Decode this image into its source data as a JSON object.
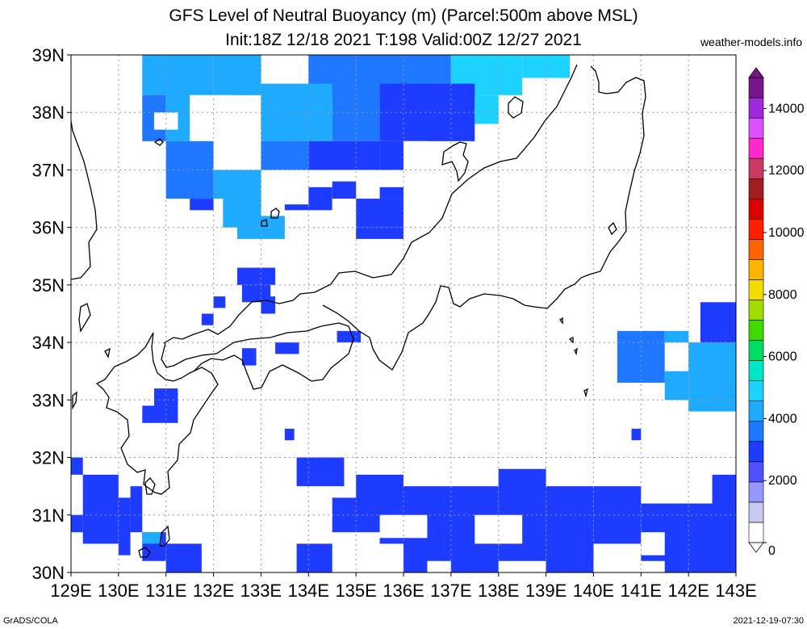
{
  "title": {
    "line1": "GFS Level of Neutral Buoyancy (m) (Parcel:500m above MSL)",
    "line2": "Init:18Z 12/18 2021 T:198 Valid:00Z 12/27 2021"
  },
  "site": "weather-models.info",
  "footer": {
    "left": "GrADS/COLA",
    "right": "2021-12-19-07:30"
  },
  "map": {
    "lon_range": [
      129,
      143
    ],
    "lat_range": [
      30,
      39
    ],
    "lon_labels": [
      "129E",
      "130E",
      "131E",
      "132E",
      "133E",
      "134E",
      "135E",
      "136E",
      "137E",
      "138E",
      "139E",
      "140E",
      "141E",
      "142E",
      "143E"
    ],
    "lat_labels": [
      "30N",
      "31N",
      "32N",
      "33N",
      "34N",
      "35N",
      "36N",
      "37N",
      "38N",
      "39N"
    ],
    "grid": "dotted",
    "coastline_color": "#000000"
  },
  "colorbar": {
    "label_values": [
      "0",
      "2000",
      "4000",
      "6000",
      "8000",
      "10000",
      "12000",
      "14000"
    ],
    "colors": [
      "#ffffff",
      "#c8c8f0",
      "#9696ff",
      "#5050ff",
      "#1e3cff",
      "#1e78ff",
      "#1eaaff",
      "#1ed2ff",
      "#00e6c8",
      "#00dc64",
      "#3cdc00",
      "#a0dc00",
      "#f0dc00",
      "#ffb400",
      "#ff6400",
      "#ff1e00",
      "#dc0000",
      "#a01e1e",
      "#c83c64",
      "#ff28c8",
      "#dc50ff",
      "#a028dc",
      "#78148c"
    ]
  },
  "field_colors": {
    "high": "#1e3cff",
    "mid": "#1e78ff",
    "light": "#1eaaff",
    "pale": "#1ed2ff"
  }
}
